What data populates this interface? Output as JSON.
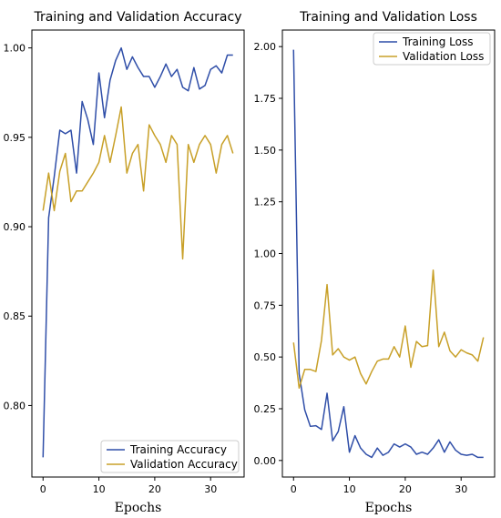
{
  "chart_data": [
    {
      "type": "line",
      "title": "Training and Validation Accuracy",
      "xlabel": "Epochs",
      "ylabel": "",
      "xlim": [
        -2,
        36
      ],
      "ylim": [
        0.76,
        1.01
      ],
      "xticks": [
        0,
        10,
        20,
        30
      ],
      "yticks": [
        0.8,
        0.85,
        0.9,
        0.95,
        1.0
      ],
      "ytick_labels": [
        "0.80",
        "0.85",
        "0.90",
        "0.95",
        "1.00"
      ],
      "grid": false,
      "legend_position": "bottom-right",
      "x": [
        0,
        1,
        2,
        3,
        4,
        5,
        6,
        7,
        8,
        9,
        10,
        11,
        12,
        13,
        14,
        15,
        16,
        17,
        18,
        19,
        20,
        21,
        22,
        23,
        24,
        25,
        26,
        27,
        28,
        29,
        30,
        31,
        32,
        33,
        34
      ],
      "series": [
        {
          "name": "Training Accuracy",
          "color": "#2f4ea8",
          "values": [
            0.771,
            0.905,
            0.928,
            0.954,
            0.952,
            0.954,
            0.93,
            0.97,
            0.96,
            0.946,
            0.986,
            0.961,
            0.982,
            0.993,
            1.0,
            0.988,
            0.995,
            0.989,
            0.984,
            0.984,
            0.978,
            0.984,
            0.991,
            0.984,
            0.988,
            0.978,
            0.976,
            0.989,
            0.977,
            0.979,
            0.988,
            0.99,
            0.986,
            0.996,
            0.996
          ]
        },
        {
          "name": "Validation Accuracy",
          "color": "#c8a028",
          "values": [
            0.909,
            0.93,
            0.909,
            0.931,
            0.941,
            0.914,
            0.92,
            0.92,
            0.925,
            0.93,
            0.936,
            0.951,
            0.936,
            0.951,
            0.967,
            0.93,
            0.941,
            0.946,
            0.92,
            0.957,
            0.951,
            0.946,
            0.936,
            0.951,
            0.946,
            0.882,
            0.946,
            0.936,
            0.946,
            0.951,
            0.946,
            0.93,
            0.946,
            0.951,
            0.941
          ]
        }
      ]
    },
    {
      "type": "line",
      "title": "Training and Validation Loss",
      "xlabel": "Epochs",
      "ylabel": "",
      "xlim": [
        -2,
        36
      ],
      "ylim": [
        -0.08,
        2.08
      ],
      "xticks": [
        0,
        10,
        20,
        30
      ],
      "yticks": [
        0.0,
        0.25,
        0.5,
        0.75,
        1.0,
        1.25,
        1.5,
        1.75,
        2.0
      ],
      "ytick_labels": [
        "0.00",
        "0.25",
        "0.50",
        "0.75",
        "1.00",
        "1.25",
        "1.50",
        "1.75",
        "2.00"
      ],
      "grid": false,
      "legend_position": "top-right",
      "x": [
        0,
        1,
        2,
        3,
        4,
        5,
        6,
        7,
        8,
        9,
        10,
        11,
        12,
        13,
        14,
        15,
        16,
        17,
        18,
        19,
        20,
        21,
        22,
        23,
        24,
        25,
        26,
        27,
        28,
        29,
        30,
        31,
        32,
        33,
        34
      ],
      "series": [
        {
          "name": "Training Loss",
          "color": "#2f4ea8",
          "values": [
            1.985,
            0.42,
            0.245,
            0.165,
            0.168,
            0.15,
            0.325,
            0.095,
            0.14,
            0.26,
            0.04,
            0.12,
            0.06,
            0.03,
            0.015,
            0.06,
            0.025,
            0.04,
            0.08,
            0.065,
            0.08,
            0.065,
            0.03,
            0.04,
            0.03,
            0.06,
            0.1,
            0.04,
            0.09,
            0.05,
            0.03,
            0.025,
            0.03,
            0.015,
            0.015
          ]
        },
        {
          "name": "Validation Loss",
          "color": "#c8a028",
          "values": [
            0.57,
            0.35,
            0.44,
            0.44,
            0.43,
            0.58,
            0.85,
            0.51,
            0.54,
            0.5,
            0.485,
            0.5,
            0.42,
            0.37,
            0.43,
            0.48,
            0.49,
            0.49,
            0.55,
            0.5,
            0.65,
            0.45,
            0.575,
            0.55,
            0.555,
            0.92,
            0.55,
            0.62,
            0.53,
            0.5,
            0.535,
            0.52,
            0.51,
            0.48,
            0.595
          ]
        }
      ]
    }
  ]
}
